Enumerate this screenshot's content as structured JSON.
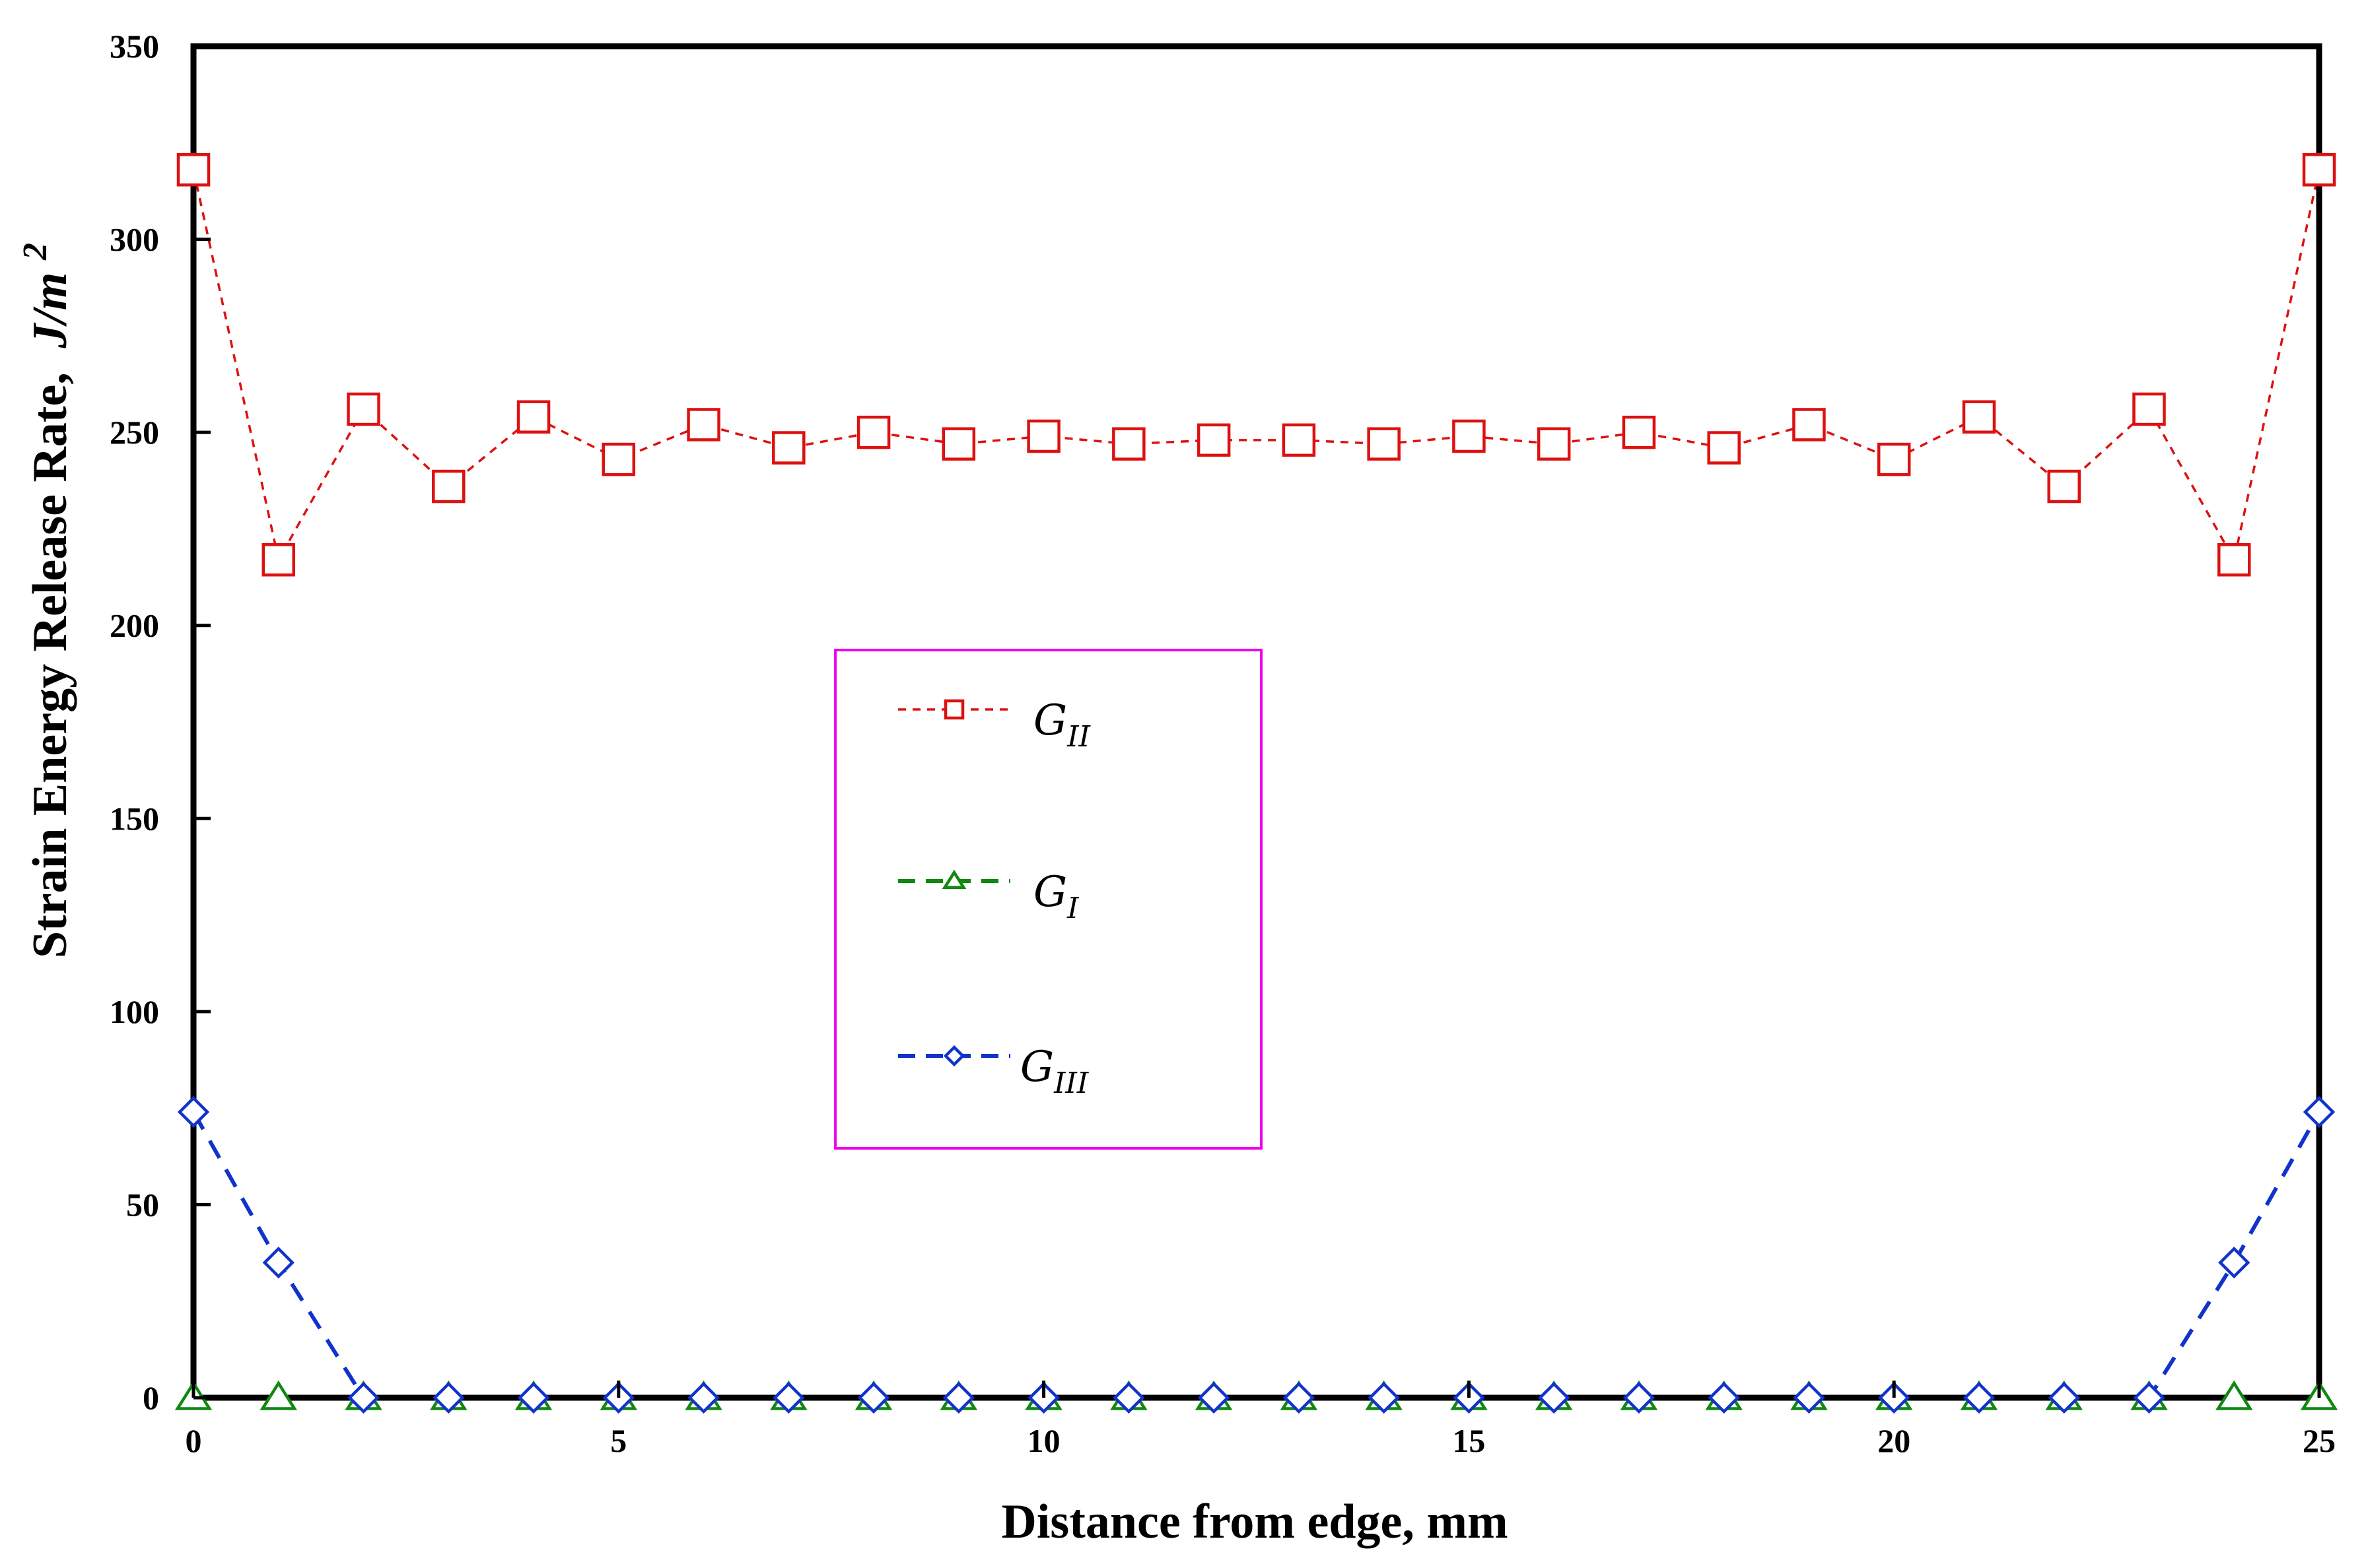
{
  "chart_data": {
    "type": "line",
    "xlabel": "Distance from edge, mm",
    "ylabel": "Strain Energy Release Rate,",
    "ylabel_unit": {
      "base": "J/m",
      "sup": "2"
    },
    "xlim": [
      0,
      25
    ],
    "ylim": [
      0,
      350
    ],
    "xticks": [
      0,
      5,
      10,
      15,
      20,
      25
    ],
    "yticks": [
      0,
      50,
      100,
      150,
      200,
      250,
      300,
      350
    ],
    "grid": false,
    "legend_position": "center",
    "x": [
      0,
      1,
      2,
      3,
      4,
      5,
      6,
      7,
      8,
      9,
      10,
      11,
      12,
      13,
      14,
      15,
      16,
      17,
      18,
      19,
      20,
      21,
      22,
      23,
      24,
      25
    ],
    "series": [
      {
        "name": "G_II",
        "label": {
          "main": "G",
          "sub": "II"
        },
        "color": "#dd1111",
        "marker": "square",
        "dash": "fine",
        "values": [
          318,
          217,
          256,
          236,
          254,
          243,
          252,
          246,
          250,
          247,
          249,
          247,
          248,
          248,
          247,
          249,
          247,
          250,
          246,
          252,
          243,
          254,
          236,
          256,
          217,
          318
        ]
      },
      {
        "name": "G_I",
        "label": {
          "main": "G",
          "sub": "I"
        },
        "color": "#118811",
        "marker": "triangle",
        "dash": "long",
        "values": [
          0,
          0,
          0,
          0,
          0,
          0,
          0,
          0,
          0,
          0,
          0,
          0,
          0,
          0,
          0,
          0,
          0,
          0,
          0,
          0,
          0,
          0,
          0,
          0,
          0,
          0
        ]
      },
      {
        "name": "G_III",
        "label": {
          "main": "G",
          "sub": "III"
        },
        "color": "#1133cc",
        "marker": "diamond",
        "dash": "long",
        "values": [
          74,
          35,
          0,
          0,
          0,
          0,
          0,
          0,
          0,
          0,
          0,
          0,
          0,
          0,
          0,
          0,
          0,
          0,
          0,
          0,
          0,
          0,
          0,
          0,
          35,
          74
        ]
      }
    ]
  }
}
